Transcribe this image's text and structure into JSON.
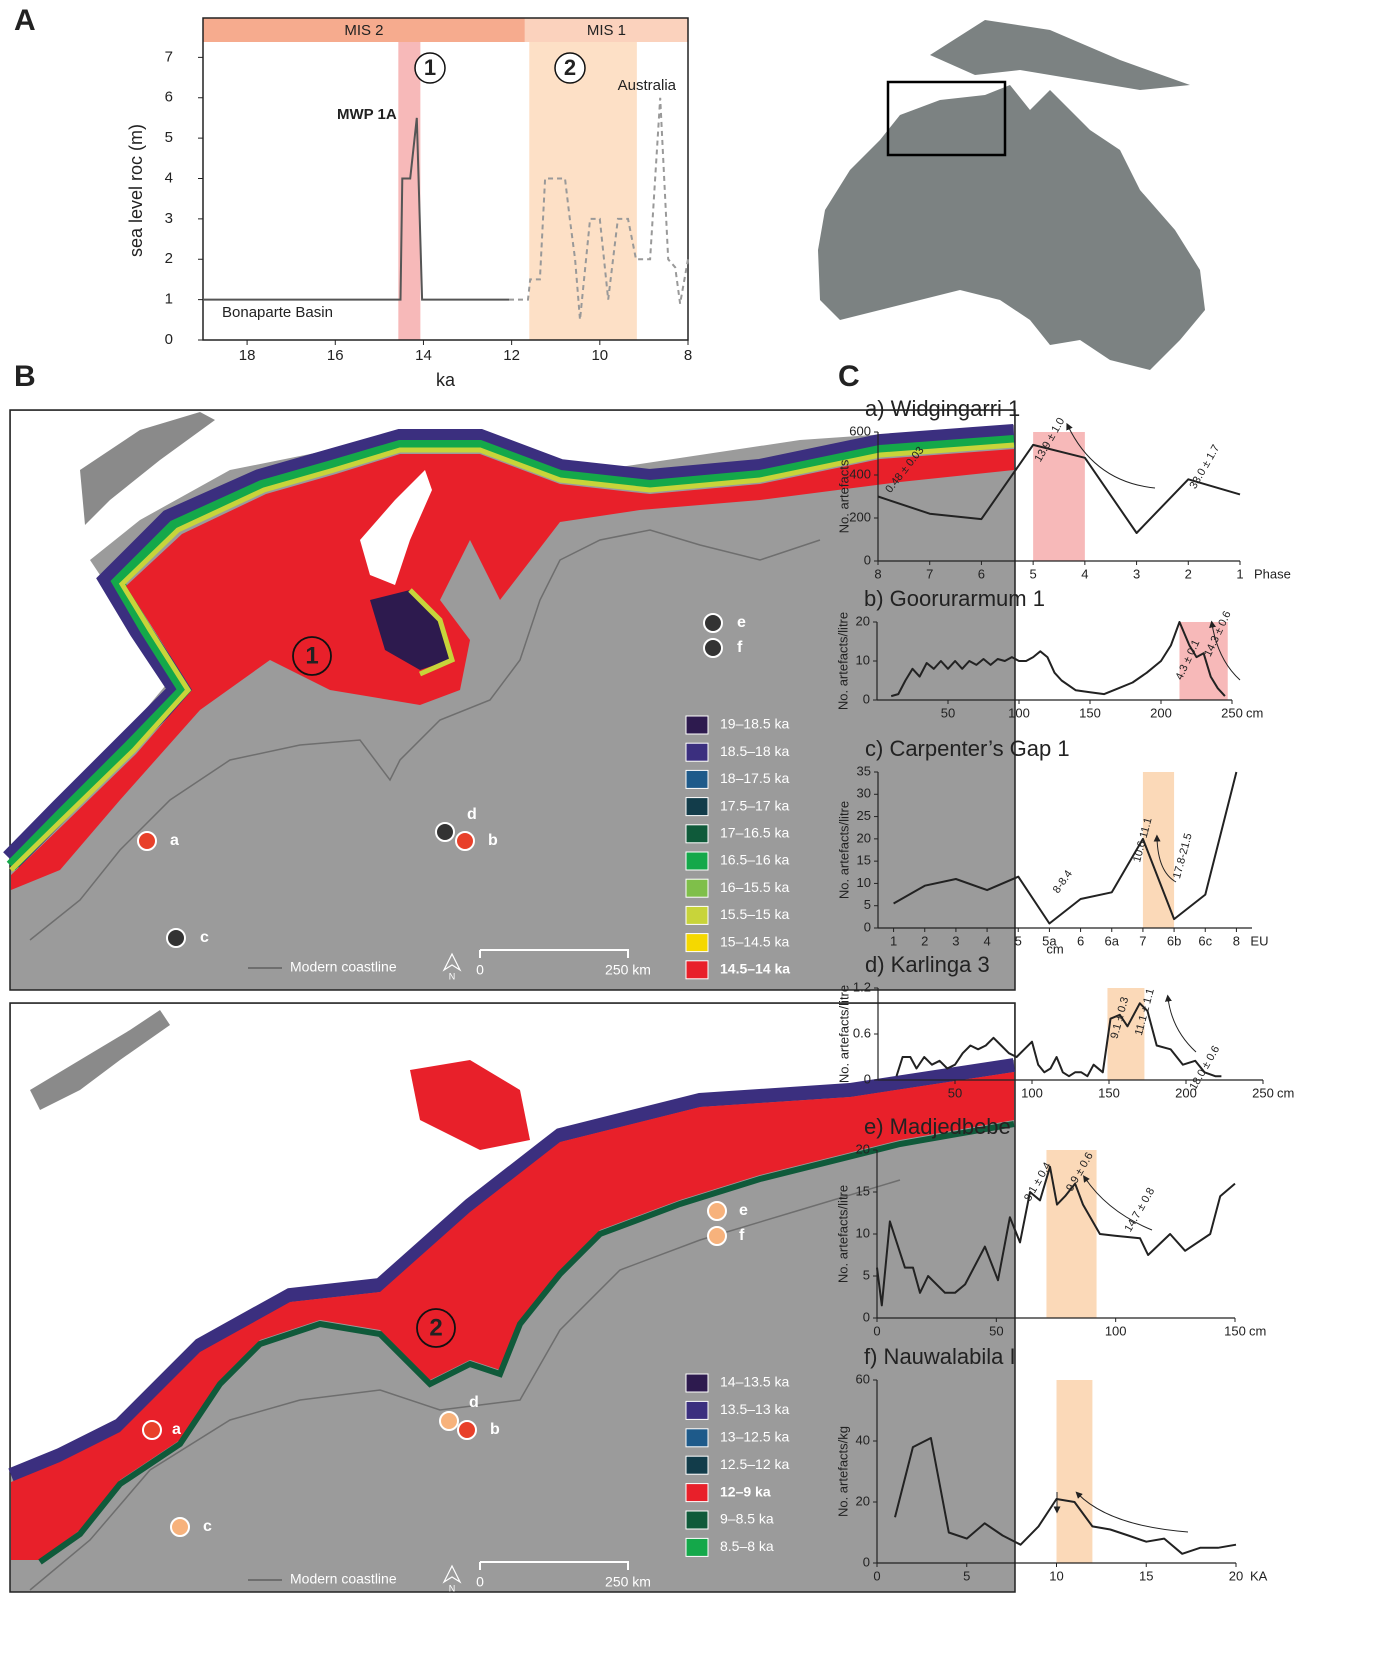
{
  "panel_labels": [
    "A",
    "B",
    "C"
  ],
  "chart_data": [
    {
      "type": "line",
      "ylabel": "sea level roc (m)",
      "xlabel": "ka",
      "xlim": [
        19,
        8
      ],
      "ylim": [
        0,
        8
      ],
      "xticks": [
        18,
        16,
        14,
        12,
        10,
        8
      ],
      "yticks": [
        0,
        1,
        2,
        3,
        4,
        5,
        6,
        7
      ],
      "periods": [
        {
          "label": "MIS 2",
          "from": 19,
          "to": 11.7,
          "color": "#f6ab8e"
        },
        {
          "label": "MIS 1",
          "from": 11.7,
          "to": 8,
          "color": "#fbd2bd"
        }
      ],
      "bands": [
        {
          "label": "1",
          "from": 14.57,
          "to": 14.07,
          "color": "#f7b9b9"
        },
        {
          "label": "2",
          "from": 11.6,
          "to": 9.16,
          "color": "#fde0c6"
        }
      ],
      "annotations": [
        "MWP 1A"
      ],
      "series": [
        {
          "name": "Bonaparte Basin",
          "color": "#555555",
          "dashed": false,
          "x": [
            19,
            14.52,
            14.48,
            14.3,
            14.15,
            14.03,
            12.06
          ],
          "values": [
            1,
            1,
            4,
            4,
            5.5,
            1,
            1
          ]
        },
        {
          "name": "Australia",
          "color": "#999999",
          "dashed": true,
          "x": [
            12.06,
            11.63,
            11.58,
            11.36,
            11.24,
            10.79,
            10.68,
            10.56,
            10.45,
            10.22,
            10.0,
            9.81,
            9.59,
            9.36,
            9.18,
            8.86,
            8.63,
            8.45,
            8.29,
            8.18,
            8.0
          ],
          "values": [
            1,
            1,
            1.5,
            1.5,
            4,
            4,
            3,
            2,
            0.5,
            3,
            3,
            1,
            3,
            3,
            2,
            2,
            6,
            2,
            1.8,
            0.9,
            2
          ]
        }
      ]
    },
    {
      "type": "line",
      "title": "a) Widgingarri 1",
      "ylabel": "No. artefacts",
      "xlabel": "Phase",
      "color": "#222222",
      "x": [
        8,
        7,
        6,
        5,
        4,
        3,
        2,
        1
      ],
      "values": [
        300,
        220,
        195,
        540,
        480,
        130,
        380,
        310
      ],
      "xlim": [
        8,
        1
      ],
      "ylim": [
        0,
        600
      ],
      "xticks": [
        8,
        7,
        6,
        5,
        4,
        3,
        2,
        1
      ],
      "yticks": [
        0,
        200,
        400,
        600
      ],
      "band": [
        5,
        4
      ],
      "band_color": "#f7b9b9",
      "annotations": [
        "0.48 ± 0.03",
        "13.9 ± 1.0",
        "33.0 ± 1.7"
      ]
    },
    {
      "type": "line",
      "title": "b) Goorurarmum 1",
      "ylabel": "No. artefacts/litre",
      "xlabel": "cm",
      "color": "#222222",
      "x": [
        10,
        15,
        20,
        25,
        30,
        35,
        40,
        45,
        50,
        55,
        60,
        65,
        70,
        75,
        80,
        85,
        90,
        95,
        100,
        105,
        110,
        115,
        120,
        125,
        130,
        140,
        150,
        160,
        170,
        180,
        190,
        200,
        207,
        213,
        220,
        225,
        230,
        235,
        240,
        245
      ],
      "values": [
        1,
        1.5,
        5,
        8,
        6,
        9.5,
        8,
        10,
        8,
        10,
        8,
        10,
        9,
        10.5,
        9,
        10.5,
        10,
        11,
        10,
        10,
        11,
        12.5,
        11,
        7,
        5,
        2.5,
        2,
        1.5,
        3,
        4.5,
        7,
        10,
        14,
        20,
        14,
        11,
        12,
        6,
        3,
        1
      ],
      "xlim": [
        0,
        250
      ],
      "ylim": [
        0,
        20
      ],
      "xticks": [
        50,
        100,
        150,
        200,
        250
      ],
      "yticks": [
        0,
        10,
        20
      ],
      "band": [
        213,
        247
      ],
      "band_color": "#f7b9b9",
      "annotations": [
        "4.3 ± 0.1",
        "14.3 ± 0.6"
      ]
    },
    {
      "type": "line",
      "title": "c) Carpenter’s Gap 1",
      "ylabel": "No. artefacts/litre",
      "xlabel": "EU",
      "color": "#222222",
      "categories": [
        "1",
        "2",
        "3",
        "4",
        "5",
        "5a",
        "6",
        "6a",
        "7",
        "6b",
        "6c",
        "8"
      ],
      "values": [
        5.5,
        9.5,
        11,
        8.5,
        11.5,
        1,
        6.5,
        8,
        20,
        2,
        7.5,
        35
      ],
      "ylim": [
        0,
        35
      ],
      "yticks": [
        0,
        5,
        10,
        15,
        20,
        25,
        30,
        35
      ],
      "band": [
        "7",
        "6b"
      ],
      "band_color": "#fbd9b8",
      "annotations": [
        "8-8.4",
        "10.6-11.1",
        "17.8-21.5",
        "cm"
      ]
    },
    {
      "type": "line",
      "title": "d) Karlinga 3",
      "ylabel": "No. artefacts/litre",
      "xlabel": "cm",
      "color": "#222222",
      "x": [
        12,
        16,
        21,
        25,
        30,
        35,
        40,
        45,
        50,
        55,
        60,
        65,
        70,
        75,
        80,
        85,
        90,
        95,
        100,
        104,
        108,
        112,
        116,
        120,
        124,
        128,
        132,
        136,
        140,
        146,
        151,
        157,
        162,
        170,
        175,
        181,
        190,
        198,
        206,
        212,
        219,
        223
      ],
      "values": [
        0.05,
        0.3,
        0.3,
        0.15,
        0.3,
        0.2,
        0.25,
        0.15,
        0.2,
        0.35,
        0.45,
        0.4,
        0.45,
        0.55,
        0.45,
        0.35,
        0.3,
        0.4,
        0.5,
        0.2,
        0.1,
        0.15,
        0.3,
        0.1,
        0.05,
        0.1,
        0.1,
        0.05,
        0.2,
        0.1,
        0.8,
        0.85,
        0.7,
        1.0,
        0.9,
        0.45,
        0.4,
        0.2,
        0.25,
        0.1,
        0.05,
        0.05
      ],
      "xlim": [
        0,
        250
      ],
      "ylim": [
        0,
        1.2
      ],
      "xticks": [
        50,
        100,
        150,
        200,
        250
      ],
      "yticks": [
        0,
        0.6,
        1.2
      ],
      "band": [
        149,
        173
      ],
      "band_color": "#fbd9b8",
      "annotations": [
        "9.1 ± 0.3",
        "11.1 ± 1.1",
        "18.0 ± 0.6"
      ]
    },
    {
      "type": "line",
      "title": "e) Madjedbebe",
      "ylabel": "No. artefacts/litre",
      "xlabel": "cm",
      "color": "#222222",
      "x": [
        0,
        2,
        5.4,
        11.7,
        15.1,
        18,
        21.4,
        28.5,
        32.7,
        36.9,
        45.2,
        50.7,
        55.7,
        59.9,
        64.1,
        68.3,
        72.5,
        75.4,
        78.8,
        83,
        86.3,
        93.4,
        99.7,
        110.2,
        113.6,
        122.8,
        129.1,
        139.6,
        143.8,
        150
      ],
      "values": [
        6,
        1.5,
        11.5,
        6,
        6,
        3,
        5,
        3,
        3,
        4,
        8.5,
        4.5,
        12,
        9,
        15,
        14,
        18,
        13.5,
        14.5,
        16,
        13.5,
        10,
        9.8,
        9.5,
        7.5,
        10,
        8,
        10,
        14.5,
        16
      ],
      "xlim": [
        0,
        150
      ],
      "ylim": [
        0,
        20
      ],
      "xticks": [
        0,
        50,
        100,
        150
      ],
      "yticks": [
        0,
        5,
        10,
        15,
        20
      ],
      "band": [
        71,
        92
      ],
      "band_color": "#fbd9b8",
      "annotations": [
        "8.1 ± 0.4",
        "9.9 ± 0.6",
        "14.7 ± 0.8"
      ]
    },
    {
      "type": "line",
      "title": "f) Nauwalabila I",
      "ylabel": "No. artefacts/kg",
      "xlabel": "KA",
      "color": "#222222",
      "x": [
        1,
        2,
        3,
        4,
        5,
        6,
        7,
        8,
        9,
        10,
        11,
        12,
        13,
        14,
        15,
        16,
        17,
        18,
        19,
        20
      ],
      "values": [
        15,
        38,
        41,
        10,
        8,
        13,
        9,
        6,
        12,
        21,
        20,
        12,
        11,
        9,
        7,
        8,
        3,
        5,
        5,
        6
      ],
      "xlim": [
        0,
        20
      ],
      "ylim": [
        0,
        60
      ],
      "xticks": [
        0,
        5,
        10,
        15,
        20
      ],
      "yticks": [
        0,
        20,
        40,
        60
      ],
      "band": [
        10,
        12
      ],
      "band_color": "#fbd9b8",
      "annotations": []
    }
  ],
  "maps": [
    {
      "circle_label": "1",
      "legend": [
        {
          "label": "19–18.5 ka",
          "color": "#2d1a4e"
        },
        {
          "label": "18.5–18 ka",
          "color": "#3b2f7f"
        },
        {
          "label": "18–17.5 ka",
          "color": "#1e5a8a"
        },
        {
          "label": "17.5–17 ka",
          "color": "#123c4a"
        },
        {
          "label": "17–16.5 ka",
          "color": "#0f5a3a"
        },
        {
          "label": "16.5–16 ka",
          "color": "#14a84a"
        },
        {
          "label": "16–15.5 ka",
          "color": "#7fbf4a"
        },
        {
          "label": "15.5–15 ka",
          "color": "#c8d43a"
        },
        {
          "label": "15–14.5 ka",
          "color": "#f5d800"
        },
        {
          "label": "14.5–14 ka",
          "color": "#e8202a",
          "bold": true
        }
      ],
      "sites": [
        {
          "label": "a",
          "color": "#e8402a"
        },
        {
          "label": "b",
          "color": "#e8402a"
        },
        {
          "label": "c",
          "color": "#333333"
        },
        {
          "label": "d",
          "color": "#333333"
        },
        {
          "label": "e",
          "color": "#333333"
        },
        {
          "label": "f",
          "color": "#333333"
        }
      ]
    },
    {
      "circle_label": "2",
      "legend": [
        {
          "label": "14–13.5 ka",
          "color": "#2d1a4e"
        },
        {
          "label": "13.5–13 ka",
          "color": "#3b2f7f"
        },
        {
          "label": "13–12.5 ka",
          "color": "#1e5a8a"
        },
        {
          "label": "12.5–12 ka",
          "color": "#123c4a"
        },
        {
          "label": "12–9 ka",
          "color": "#e8202a",
          "bold": true
        },
        {
          "label": "9–8.5 ka",
          "color": "#0f5a3a"
        },
        {
          "label": "8.5–8 ka",
          "color": "#14a84a"
        }
      ],
      "sites": [
        {
          "label": "a",
          "color": "#e8402a"
        },
        {
          "label": "b",
          "color": "#e8402a"
        },
        {
          "label": "c",
          "color": "#f7b27c"
        },
        {
          "label": "d",
          "color": "#f7b27c"
        },
        {
          "label": "e",
          "color": "#f7b27c"
        },
        {
          "label": "f",
          "color": "#f7b27c"
        }
      ]
    }
  ],
  "map_key": {
    "coastline": "Modern coastline",
    "north": "N",
    "scale_labels": [
      "0",
      "250 km"
    ]
  }
}
